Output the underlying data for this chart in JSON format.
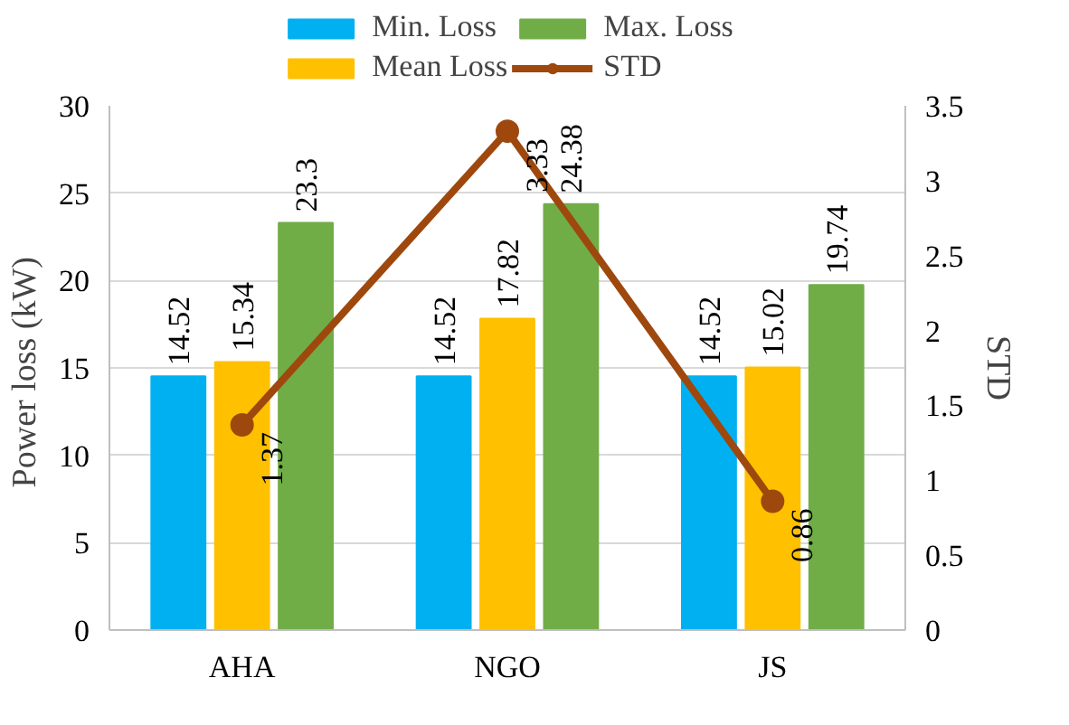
{
  "chart_data": {
    "type": "bar",
    "categories": [
      "AHA",
      "NGO",
      "JS"
    ],
    "series": [
      {
        "name": "Min. Loss",
        "color": "#00b0f0",
        "values": [
          14.52,
          14.52,
          14.52
        ]
      },
      {
        "name": "Mean Loss",
        "color": "#ffc000",
        "values": [
          15.34,
          17.82,
          15.02
        ]
      },
      {
        "name": "Max. Loss",
        "color": "#70ad47",
        "values": [
          23.3,
          24.38,
          19.74
        ]
      },
      {
        "name": "STD",
        "color": "#9e480e",
        "values": [
          1.37,
          3.33,
          0.86
        ],
        "type": "line",
        "axis": "y2",
        "marker": "circle"
      }
    ],
    "ylabel": "Power loss  (kW)",
    "y2label": "STD",
    "ylim": [
      0,
      30
    ],
    "yticks": [
      0,
      5,
      10,
      15,
      20,
      25,
      30
    ],
    "y2lim": [
      0,
      3.5
    ],
    "y2ticks": [
      0,
      {
        "value": 0.5,
        "label": "0.5"
      },
      1,
      {
        "value": 1.5,
        "label": "1.5"
      },
      2,
      {
        "value": 2.5,
        "label": "2.5"
      },
      3,
      {
        "value": 3.5,
        "label": "3.5"
      }
    ],
    "data_labels": true,
    "grid": "y",
    "legend": "top"
  }
}
